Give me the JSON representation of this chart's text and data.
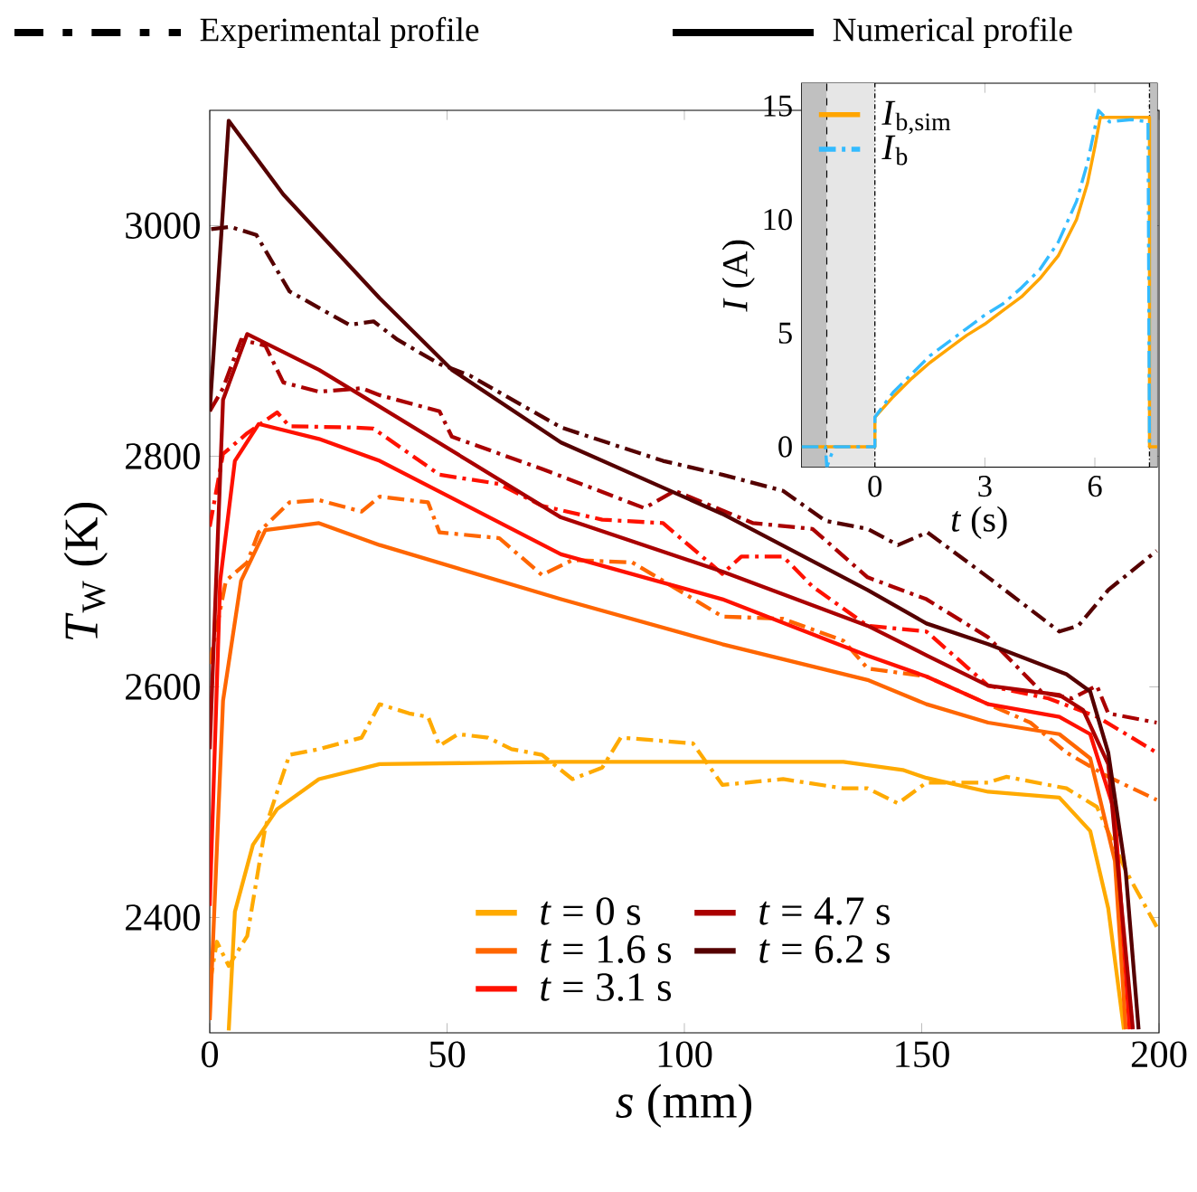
{
  "chart_data": [
    {
      "type": "line",
      "xlabel": "*s* (mm)",
      "ylabel": "*T*$_{W}$ (K)",
      "xlim": [
        0,
        200
      ],
      "ylim": [
        2300,
        3100
      ],
      "xticks": [
        0,
        50,
        100,
        150,
        200
      ],
      "yticks": [
        2400,
        2600,
        2800,
        3000
      ],
      "legend": "bottom",
      "annotations": [
        "Experimental profile",
        "Numerical profile"
      ],
      "series": [
        {
          "color": "#ffaa00",
          "line_style": "dashed",
          "x": [
            0,
            1.5,
            4,
            7.9,
            11.7,
            16.8,
            23,
            32,
            35.8,
            42,
            46,
            48.4,
            52.3,
            58.6,
            63.6,
            70,
            76.4,
            82.7,
            86.6,
            101.8,
            108,
            120.8,
            133.5,
            138.6,
            145,
            151,
            164,
            167.8,
            180.5,
            186.9,
            193.2,
            199.5
          ],
          "values": [
            2342,
            2379,
            2358,
            2384,
            2478,
            2541,
            2546,
            2556,
            2585,
            2577,
            2574,
            2549,
            2559,
            2556,
            2546,
            2541,
            2520,
            2530,
            2556,
            2551,
            2515,
            2520,
            2512,
            2512,
            2499,
            2517,
            2517,
            2522,
            2512,
            2496,
            2439,
            2392
          ]
        },
        {
          "color": "#ff6600",
          "line_style": "dashed",
          "x": [
            0,
            3.4,
            7.9,
            10.3,
            16.8,
            23,
            32,
            35.8,
            46,
            48.4,
            61,
            70,
            76.4,
            89,
            95.5,
            108,
            120.8,
            133.5,
            138.6,
            151,
            164,
            172.9,
            180.5,
            189.3,
            199.5
          ],
          "values": [
            2620,
            2692,
            2708,
            2734,
            2760,
            2762,
            2752,
            2765,
            2760,
            2734,
            2729,
            2697,
            2710,
            2708,
            2692,
            2661,
            2659,
            2640,
            2616,
            2609,
            2585,
            2569,
            2543,
            2522,
            2502
          ]
        },
        {
          "color": "#ff1100",
          "line_style": "dashed",
          "x": [
            0,
            2.8,
            7.9,
            14.2,
            16.8,
            29.4,
            34.5,
            48.4,
            61,
            70,
            82.7,
            95.5,
            108,
            112,
            120.8,
            127,
            138.6,
            151,
            164,
            176.7,
            187,
            199.5
          ],
          "values": [
            2739,
            2802,
            2820,
            2838,
            2826,
            2825,
            2824,
            2784,
            2776,
            2757,
            2745,
            2742,
            2698,
            2713,
            2713,
            2687,
            2653,
            2648,
            2601,
            2590,
            2574,
            2543
          ]
        },
        {
          "color": "#aa0000",
          "line_style": "dashed",
          "x": [
            0,
            2.8,
            6.6,
            11.7,
            15.5,
            23,
            32,
            35.8,
            48.4,
            51,
            70,
            91.6,
            98,
            114.5,
            127,
            138.6,
            151,
            164,
            175.4,
            181.7,
            186.9,
            189.3,
            199.5
          ],
          "values": [
            2839,
            2859,
            2901,
            2896,
            2864,
            2856,
            2859,
            2853,
            2839,
            2817,
            2789,
            2755,
            2770,
            2742,
            2737,
            2695,
            2676,
            2643,
            2595,
            2590,
            2601,
            2577,
            2569
          ]
        },
        {
          "color": "#550000",
          "line_style": "dashed",
          "x": [
            0.3,
            4.3,
            9.8,
            16.8,
            29.4,
            34.5,
            39.6,
            48.4,
            54.8,
            74,
            95.5,
            108,
            120.8,
            129.7,
            138.6,
            145,
            151.2,
            164,
            179,
            183,
            189.3,
            199.5
          ],
          "values": [
            2997,
            2999,
            2992,
            2943,
            2914,
            2917,
            2901,
            2880,
            2870,
            2825,
            2796,
            2784,
            2770,
            2744,
            2737,
            2723,
            2734,
            2695,
            2648,
            2653,
            2684,
            2718
          ]
        },
        {
          "name": "*t* =  0 s",
          "color": "#ffaa00",
          "line_style": "solid",
          "x": [
            4,
            5.3,
            9.1,
            14.2,
            23,
            35.8,
            74,
            133.5,
            146,
            151,
            164,
            179,
            185.5,
            189.3,
            192.6
          ],
          "values": [
            2302,
            2405,
            2463,
            2494,
            2520,
            2533,
            2535,
            2535,
            2528,
            2521,
            2509,
            2504,
            2475,
            2408,
            2303
          ]
        },
        {
          "name": "*t* =  1.6 s",
          "color": "#ff6600",
          "line_style": "solid",
          "x": [
            0,
            2.8,
            6.6,
            11.7,
            23,
            35.8,
            74,
            108,
            138.6,
            151,
            164,
            179,
            185.5,
            190.7,
            193
          ],
          "values": [
            2311,
            2588,
            2692,
            2736,
            2742,
            2723,
            2676,
            2637,
            2606,
            2585,
            2569,
            2559,
            2538,
            2449,
            2303
          ]
        },
        {
          "name": "*t* =  3.1 s",
          "color": "#ff1100",
          "line_style": "solid",
          "x": [
            0,
            2.2,
            5.3,
            10.3,
            23,
            35.8,
            74,
            108,
            138.6,
            151,
            164,
            179,
            185.5,
            190.7,
            193.8
          ],
          "values": [
            2410,
            2692,
            2796,
            2828,
            2815,
            2796,
            2715,
            2676,
            2627,
            2609,
            2585,
            2574,
            2559,
            2491,
            2303
          ]
        },
        {
          "name": "*t* =  4.7 s",
          "color": "#aa0000",
          "line_style": "solid",
          "x": [
            0,
            2.8,
            7.9,
            23,
            35.8,
            74,
            108,
            138.6,
            151.2,
            164,
            179,
            184,
            189.3,
            194.5
          ],
          "values": [
            2546,
            2849,
            2906,
            2875,
            2843,
            2747,
            2700,
            2653,
            2627,
            2601,
            2593,
            2580,
            2533,
            2303
          ]
        },
        {
          "name": "*t* =  6.2 s",
          "color": "#550000",
          "line_style": "solid",
          "x": [
            0,
            4,
            15.5,
            35.8,
            51,
            74,
            108,
            138.6,
            151,
            164,
            180.5,
            185.5,
            189.3,
            193,
            195.7
          ],
          "values": [
            2839,
            3091,
            3027,
            2937,
            2875,
            2812,
            2750,
            2684,
            2655,
            2637,
            2611,
            2596,
            2543,
            2439,
            2303
          ]
        }
      ]
    },
    {
      "type": "line",
      "xlabel": "*t* (s)",
      "ylabel": "*I* (A)",
      "xlim": [
        -2,
        7.7
      ],
      "ylim": [
        -0.9,
        16
      ],
      "xticks": [
        0,
        3,
        6
      ],
      "yticks": [
        0,
        5,
        10,
        15
      ],
      "legend": "top left",
      "bands": [
        {
          "axis": "x",
          "from": -2,
          "to": -1.31,
          "color": "#c0c0c0"
        },
        {
          "axis": "x",
          "from": -1.31,
          "to": 0,
          "color": "#e6e6e6"
        },
        {
          "axis": "x",
          "from": 7.49,
          "to": 7.7,
          "color": "#c0c0c0"
        }
      ],
      "ref_lines": [
        {
          "axis": "x",
          "value": -1.31,
          "line_style": "dashed"
        },
        {
          "axis": "x",
          "value": 0,
          "line_style": "dotted"
        },
        {
          "axis": "x",
          "value": 7.49,
          "line_style": "dotted"
        }
      ],
      "series": [
        {
          "name": "*I*$_{b,sim}$",
          "color": "#ffa500",
          "line_style": "solid",
          "x": [
            -2,
            0,
            0,
            0.5,
            1,
            1.5,
            2,
            2.5,
            3,
            3.5,
            4,
            4.5,
            5,
            5.5,
            5.8,
            6.0,
            6.15,
            7.49,
            7.49,
            7.7
          ],
          "values": [
            0,
            0,
            1.3,
            2.2,
            3.0,
            3.7,
            4.3,
            4.9,
            5.4,
            6.0,
            6.6,
            7.4,
            8.4,
            10.0,
            11.6,
            13.2,
            14.5,
            14.5,
            0,
            0
          ]
        },
        {
          "name": "*I*$_{b}$",
          "color": "#33bbff",
          "line_style": "dashed",
          "x": [
            -2,
            -1.35,
            -1.31,
            -1.2,
            -1.1,
            0,
            0,
            0.5,
            1,
            1.5,
            2,
            2.5,
            3,
            3.5,
            4,
            4.5,
            5,
            5.5,
            5.8,
            6.1,
            6.4,
            7.0,
            7.45,
            7.49
          ],
          "values": [
            0,
            0,
            -0.9,
            -0.4,
            0,
            0,
            1.3,
            2.4,
            3.2,
            4.0,
            4.6,
            5.2,
            5.8,
            6.3,
            7.0,
            7.8,
            9.0,
            10.8,
            12.5,
            14.8,
            14.3,
            14.4,
            14.3,
            0
          ]
        }
      ]
    }
  ]
}
